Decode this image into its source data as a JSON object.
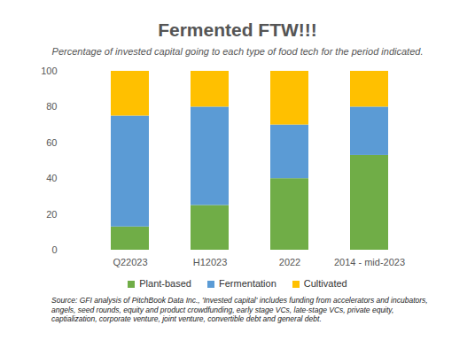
{
  "chart_data": {
    "type": "bar",
    "stacked": true,
    "title": "Fermented FTW!!!",
    "subtitle": "Percentage of invested capital going to each type of food tech for the period indicated.",
    "caption": "Source: GFI analysis of PitchBook Data Inc., 'Invested capital' includes funding from accelerators and incubators, angels, seed rounds, equity and product crowdfunding, early stage VCs, late-stage VCs, private equity, captialization, corporate venture, joint venture, convertible debt and general debt.",
    "categories": [
      "Q22023",
      "H12023",
      "2022",
      "2014 - mid-2023"
    ],
    "series": [
      {
        "name": "Plant-based",
        "color": "#70ad47",
        "values": [
          13,
          25,
          40,
          53
        ]
      },
      {
        "name": "Fermentation",
        "color": "#5b9bd5",
        "values": [
          62,
          55,
          30,
          27
        ]
      },
      {
        "name": "Cultivated",
        "color": "#ffc000",
        "values": [
          25,
          20,
          30,
          20
        ]
      }
    ],
    "ylim": [
      0,
      100
    ],
    "yticks": [
      0,
      20,
      40,
      60,
      80,
      100
    ],
    "grid": false,
    "legend": "bottom"
  }
}
